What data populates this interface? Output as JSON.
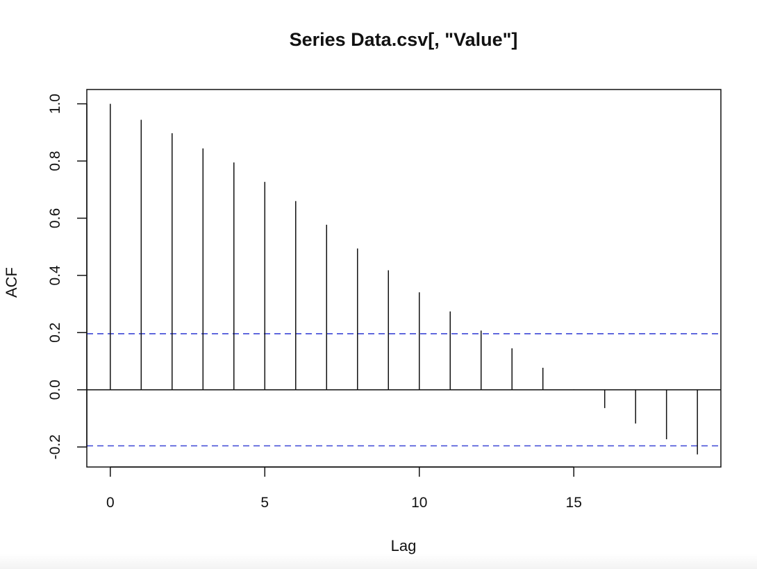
{
  "chart_data": {
    "type": "bar",
    "title": "Series  Data.csv[, \"Value\"]",
    "xlabel": "Lag",
    "ylabel": "ACF",
    "xlim": [
      -0.76,
      19.76
    ],
    "ylim": [
      -0.27,
      1.05
    ],
    "xticks": [
      0,
      5,
      10,
      15
    ],
    "xtick_labels": [
      "0",
      "5",
      "10",
      "15"
    ],
    "yticks": [
      -0.2,
      0.0,
      0.2,
      0.4,
      0.6,
      0.8,
      1.0
    ],
    "ytick_labels": [
      "-0.2",
      "0.0",
      "0.2",
      "0.4",
      "0.6",
      "0.8",
      "1.0"
    ],
    "grid": false,
    "lags": [
      0,
      1,
      2,
      3,
      4,
      5,
      6,
      7,
      8,
      9,
      10,
      11,
      12,
      13,
      14,
      15,
      16,
      17,
      18,
      19
    ],
    "values": [
      1.0,
      0.944,
      0.897,
      0.844,
      0.795,
      0.727,
      0.66,
      0.577,
      0.494,
      0.418,
      0.341,
      0.274,
      0.207,
      0.145,
      0.077,
      0.002,
      -0.064,
      -0.118,
      -0.173,
      -0.226
    ],
    "confidence_bound": 0.196,
    "colors": {
      "bars": "#111111",
      "zero_line": "#111111",
      "confidence": "#3b46d6"
    }
  }
}
